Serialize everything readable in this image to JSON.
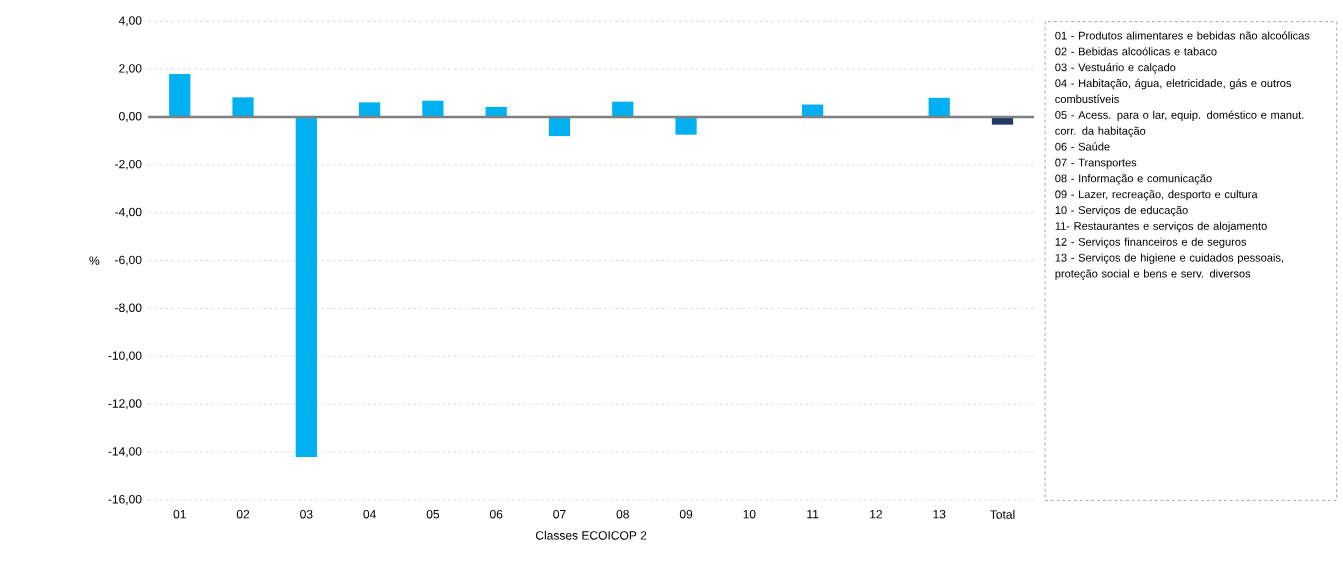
{
  "chart_data": {
    "type": "bar",
    "xlabel": "Classes ECOICOP 2",
    "ylabel": "%",
    "categories": [
      "01",
      "02",
      "03",
      "04",
      "05",
      "06",
      "07",
      "08",
      "09",
      "10",
      "11",
      "12",
      "13",
      "Total"
    ],
    "values": [
      1.8,
      0.82,
      -14.2,
      0.61,
      0.68,
      0.42,
      -0.8,
      0.64,
      -0.74,
      0,
      0.52,
      0,
      0.8,
      -0.32
    ],
    "colors": [
      "#00b0f0",
      "#00b0f0",
      "#00b0f0",
      "#00b0f0",
      "#00b0f0",
      "#00b0f0",
      "#00b0f0",
      "#00b0f0",
      "#00b0f0",
      "#00b0f0",
      "#00b0f0",
      "#00b0f0",
      "#00b0f0",
      "#1f3864"
    ],
    "ylim": [
      -16,
      4
    ],
    "yticks": [
      {
        "value": -16,
        "label": "-16,00"
      },
      {
        "value": -14,
        "label": "-14,00"
      },
      {
        "value": -12,
        "label": "-12,00"
      },
      {
        "value": -10,
        "label": "-10,00"
      },
      {
        "value": -8,
        "label": "-8,00"
      },
      {
        "value": -6,
        "label": "-6,00"
      },
      {
        "value": -4,
        "label": "-4,00"
      },
      {
        "value": -2,
        "label": "-2,00"
      },
      {
        "value": 0,
        "label": "0,00"
      },
      {
        "value": 2,
        "label": "2,00"
      },
      {
        "value": 4,
        "label": "4,00"
      }
    ],
    "grid": "y",
    "annotations": [
      "01 - Produtos alimentares e bebidas não alcoólicas",
      "02 - Bebidas alcoólicas e tabaco",
      "03 - Vestuário e calçado",
      "04 - Habitação, água, eletricidade, gás e outros combustíveis",
      "05 - Acess. para o lar, equip. doméstico e manut. corr. da habitação",
      "06 - Saúde",
      "07 - Transportes",
      "08 - Informação e comunicação",
      "09 - Lazer, recreação, desporto e cultura",
      "10 - Serviços de educação",
      "11- Restaurantes e serviços de alojamento",
      "12 - Serviços financeiros e de seguros",
      "13 - Serviços de higiene e cuidados pessoais, proteção social e bens e serv. diversos"
    ]
  }
}
